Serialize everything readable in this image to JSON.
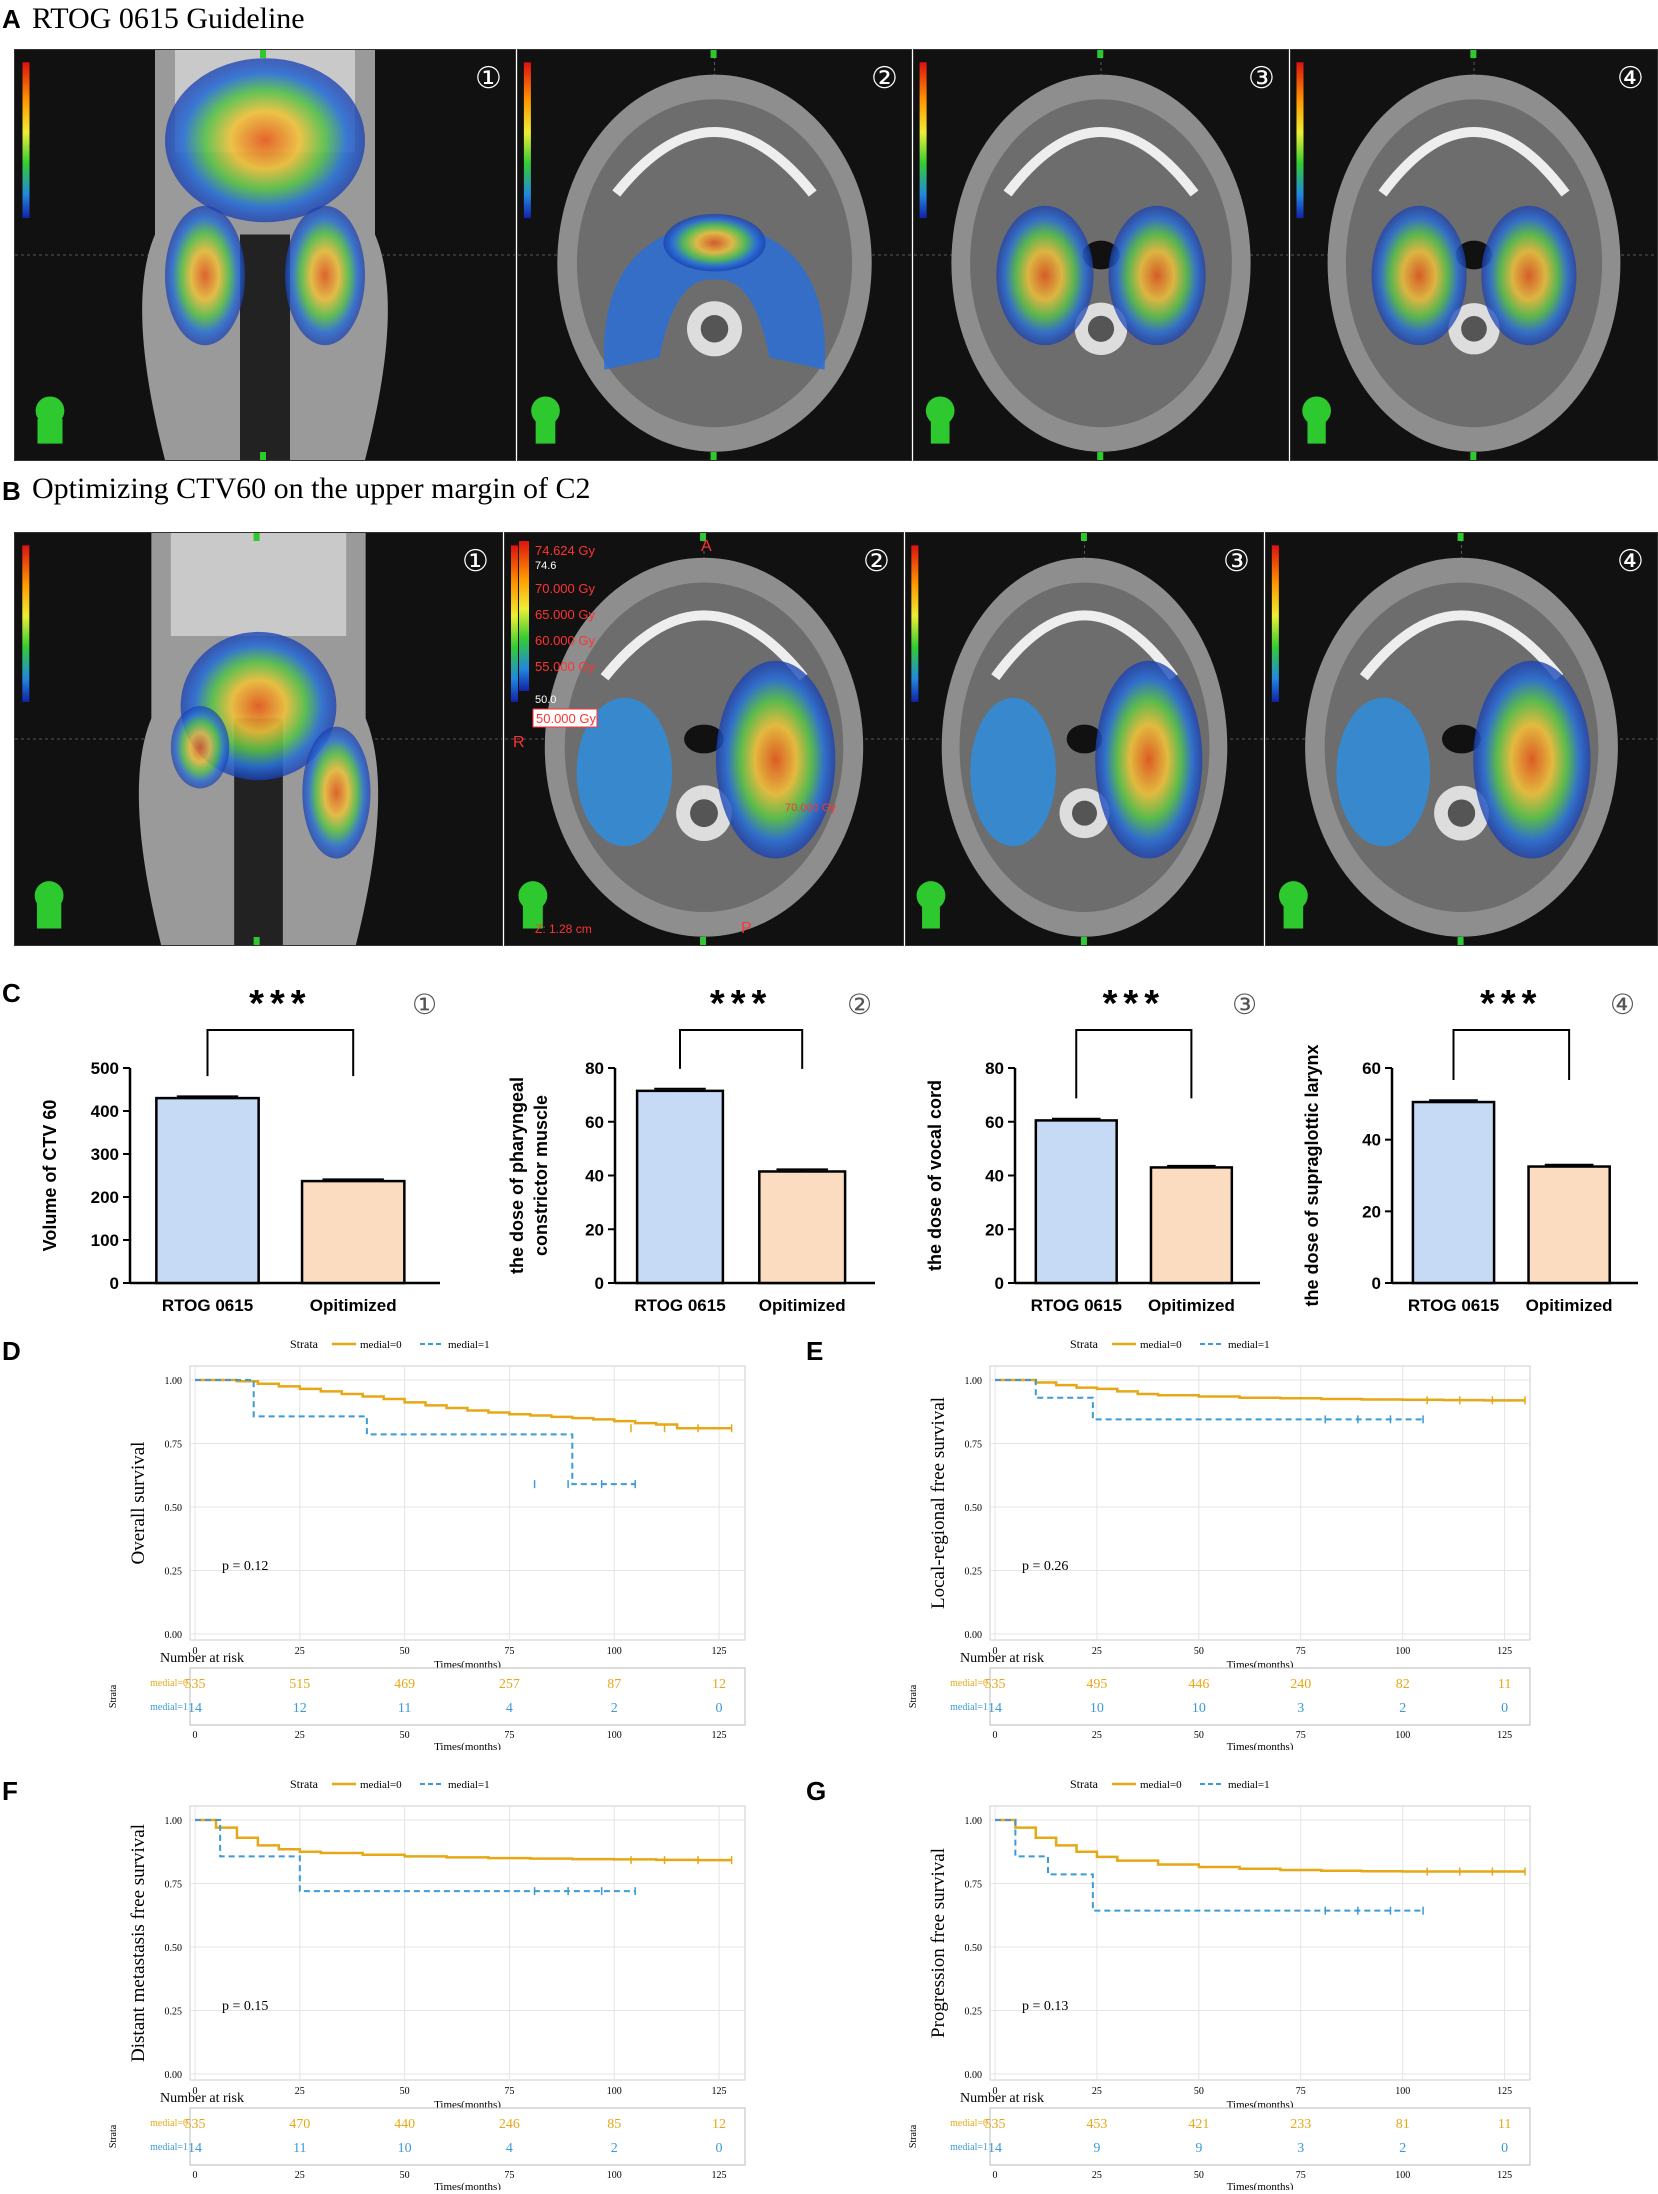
{
  "panel_a": {
    "label": "A",
    "title": "RTOG 0615 Guideline",
    "markers": [
      "①",
      "②",
      "③",
      "④"
    ]
  },
  "panel_b": {
    "label": "B",
    "title": "Optimizing CTV60 on the upper margin of C2",
    "markers": [
      "①",
      "②",
      "③",
      "④"
    ],
    "legend": {
      "max": "74.624 Gy",
      "top": "74.6",
      "levels": [
        "70.000 Gy",
        "65.000 Gy",
        "60.000 Gy",
        "55.000 Gy"
      ],
      "low": "50.0",
      "bottom": "50.000 Gy",
      "side": "R",
      "ant": "A",
      "post": "P",
      "z": "Z: 1.28 cm",
      "spot": "70.000 Gy"
    }
  },
  "panel_c": {
    "label": "C"
  },
  "colors": {
    "rtog": "#c6d9f5",
    "opt": "#fbdcc0",
    "medial0": "#e6a817",
    "medial1": "#3b9ad9"
  },
  "chart_data": [
    {
      "type": "bar",
      "marker": "①",
      "significance": "***",
      "categories": [
        "RTOG 0615",
        "Opitimized"
      ],
      "values": [
        430,
        237
      ],
      "errors": [
        4,
        4
      ],
      "ylabel": "Volume of CTV 60",
      "ylim": [
        0,
        500
      ],
      "yticks": [
        0,
        100,
        200,
        300,
        400,
        500
      ]
    },
    {
      "type": "bar",
      "marker": "②",
      "significance": "***",
      "categories": [
        "RTOG 0615",
        "Opitimized"
      ],
      "values": [
        71.5,
        41.5
      ],
      "errors": [
        0.8,
        0.8
      ],
      "ylabel": [
        "the dose of pharyngeal",
        "constrictor muscle"
      ],
      "ylim": [
        0,
        80
      ],
      "yticks": [
        0,
        20,
        40,
        60,
        80
      ]
    },
    {
      "type": "bar",
      "marker": "③",
      "significance": "***",
      "categories": [
        "RTOG 0615",
        "Opitimized"
      ],
      "values": [
        60.5,
        43
      ],
      "errors": [
        0.6,
        0.6
      ],
      "ylabel": "the dose of vocal cord",
      "ylim": [
        0,
        80
      ],
      "yticks": [
        0,
        20,
        40,
        60,
        80
      ]
    },
    {
      "type": "bar",
      "marker": "④",
      "significance": "***",
      "categories": [
        "RTOG 0615",
        "Opitimized"
      ],
      "values": [
        50.5,
        32.5
      ],
      "errors": [
        0.5,
        0.5
      ],
      "ylabel": "the dose of supraglottic larynx",
      "ylim": [
        0,
        60
      ],
      "yticks": [
        0,
        20,
        40,
        60
      ]
    },
    {
      "type": "line",
      "label": "D",
      "ylabel": "Overall survival",
      "xlabel": "Times(months)",
      "p": "p = 0.12",
      "strata_title": "Strata",
      "legend": [
        "medial=0",
        "medial=1"
      ],
      "xlim": [
        0,
        130
      ],
      "ylim": [
        0,
        1
      ],
      "xticks": [
        0,
        25,
        50,
        75,
        100,
        125
      ],
      "yticks": [
        "0.00",
        "0.25",
        "0.50",
        "0.75",
        "1.00"
      ],
      "series": [
        {
          "name": "medial=0",
          "x": [
            0,
            5,
            10,
            15,
            20,
            25,
            30,
            35,
            40,
            45,
            50,
            55,
            60,
            65,
            70,
            75,
            80,
            85,
            90,
            95,
            100,
            105,
            110,
            115,
            120,
            125,
            128
          ],
          "y": [
            1,
            1,
            0.995,
            0.985,
            0.975,
            0.965,
            0.955,
            0.945,
            0.935,
            0.925,
            0.912,
            0.9,
            0.89,
            0.88,
            0.872,
            0.865,
            0.86,
            0.855,
            0.85,
            0.845,
            0.838,
            0.83,
            0.825,
            0.81,
            0.81,
            0.81,
            0.81
          ]
        },
        {
          "name": "medial=1",
          "x": [
            0,
            14,
            14,
            41,
            41,
            90,
            90,
            105
          ],
          "y": [
            1,
            1,
            0.857,
            0.857,
            0.786,
            0.786,
            0.59,
            0.59
          ]
        }
      ],
      "risk": {
        "title": "Number at risk",
        "strata": "Strata",
        "x": [
          0,
          25,
          50,
          75,
          100,
          125
        ],
        "medial0": [
          "535",
          "515",
          "469",
          "257",
          "87",
          "12"
        ],
        "medial1": [
          "14",
          "12",
          "11",
          "4",
          "2",
          "0"
        ],
        "xlabel": "Times(months)"
      }
    },
    {
      "type": "line",
      "label": "E",
      "ylabel": "Local-regional free survival",
      "xlabel": "Times(months)",
      "p": "p = 0.26",
      "strata_title": "Strata",
      "legend": [
        "medial=0",
        "medial=1"
      ],
      "xlim": [
        0,
        130
      ],
      "ylim": [
        0,
        1
      ],
      "xticks": [
        0,
        25,
        50,
        75,
        100,
        125
      ],
      "yticks": [
        "0.00",
        "0.25",
        "0.50",
        "0.75",
        "1.00"
      ],
      "series": [
        {
          "name": "medial=0",
          "x": [
            0,
            5,
            10,
            15,
            20,
            25,
            30,
            35,
            40,
            50,
            60,
            70,
            80,
            90,
            100,
            110,
            120,
            130
          ],
          "y": [
            1,
            1,
            0.99,
            0.98,
            0.97,
            0.965,
            0.955,
            0.945,
            0.94,
            0.935,
            0.93,
            0.928,
            0.925,
            0.923,
            0.922,
            0.921,
            0.92,
            0.92
          ]
        },
        {
          "name": "medial=1",
          "x": [
            0,
            10,
            10,
            14,
            14,
            24,
            24,
            105
          ],
          "y": [
            1,
            1,
            0.93,
            0.93,
            0.93,
            0.93,
            0.845,
            0.845
          ]
        }
      ],
      "risk": {
        "title": "Number at risk",
        "strata": "Strata",
        "x": [
          0,
          25,
          50,
          75,
          100,
          125
        ],
        "medial0": [
          "535",
          "495",
          "446",
          "240",
          "82",
          "11"
        ],
        "medial1": [
          "14",
          "10",
          "10",
          "3",
          "2",
          "0"
        ],
        "xlabel": "Times(months)"
      }
    },
    {
      "type": "line",
      "label": "F",
      "ylabel": "Distant metastasis free survival",
      "xlabel": "Times(months)",
      "p": "p = 0.15",
      "strata_title": "Strata",
      "legend": [
        "medial=0",
        "medial=1"
      ],
      "xlim": [
        0,
        130
      ],
      "ylim": [
        0,
        1
      ],
      "xticks": [
        0,
        25,
        50,
        75,
        100,
        125
      ],
      "yticks": [
        "0.00",
        "0.25",
        "0.50",
        "0.75",
        "1.00"
      ],
      "series": [
        {
          "name": "medial=0",
          "x": [
            0,
            5,
            10,
            15,
            20,
            25,
            30,
            40,
            50,
            60,
            70,
            80,
            90,
            100,
            110,
            120,
            128
          ],
          "y": [
            1,
            0.97,
            0.93,
            0.9,
            0.885,
            0.875,
            0.87,
            0.863,
            0.857,
            0.853,
            0.85,
            0.848,
            0.846,
            0.845,
            0.843,
            0.842,
            0.842
          ]
        },
        {
          "name": "medial=1",
          "x": [
            0,
            6,
            6,
            25,
            25,
            105
          ],
          "y": [
            1,
            1,
            0.857,
            0.857,
            0.72,
            0.72
          ]
        }
      ],
      "risk": {
        "title": "Number at risk",
        "strata": "Strata",
        "x": [
          0,
          25,
          50,
          75,
          100,
          125
        ],
        "medial0": [
          "535",
          "470",
          "440",
          "246",
          "85",
          "12"
        ],
        "medial1": [
          "14",
          "11",
          "10",
          "4",
          "2",
          "0"
        ],
        "xlabel": "Times(months)"
      }
    },
    {
      "type": "line",
      "label": "G",
      "ylabel": "Progression free survival",
      "xlabel": "Times(months)",
      "p": "p = 0.13",
      "strata_title": "Strata",
      "legend": [
        "medial=0",
        "medial=1"
      ],
      "xlim": [
        0,
        130
      ],
      "ylim": [
        0,
        1
      ],
      "xticks": [
        0,
        25,
        50,
        75,
        100,
        125
      ],
      "yticks": [
        "0.00",
        "0.25",
        "0.50",
        "0.75",
        "1.00"
      ],
      "series": [
        {
          "name": "medial=0",
          "x": [
            0,
            5,
            10,
            15,
            20,
            25,
            30,
            40,
            50,
            60,
            70,
            80,
            90,
            100,
            110,
            120,
            130
          ],
          "y": [
            1,
            0.97,
            0.93,
            0.9,
            0.875,
            0.855,
            0.84,
            0.825,
            0.815,
            0.808,
            0.803,
            0.8,
            0.798,
            0.797,
            0.797,
            0.797,
            0.797
          ]
        },
        {
          "name": "medial=1",
          "x": [
            0,
            5,
            5,
            13,
            13,
            24,
            24,
            105
          ],
          "y": [
            1,
            1,
            0.857,
            0.857,
            0.786,
            0.786,
            0.643,
            0.643
          ]
        }
      ],
      "risk": {
        "title": "Number at risk",
        "strata": "Strata",
        "x": [
          0,
          25,
          50,
          75,
          100,
          125
        ],
        "medial0": [
          "535",
          "453",
          "421",
          "233",
          "81",
          "11"
        ],
        "medial1": [
          "14",
          "9",
          "9",
          "3",
          "2",
          "0"
        ],
        "xlabel": "Times(months)"
      }
    }
  ]
}
